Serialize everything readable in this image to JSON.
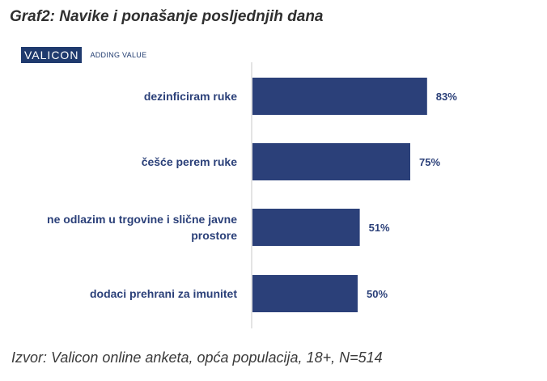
{
  "header": {
    "title": "Graf2: Navike i ponašanje posljednjih dana"
  },
  "logo": {
    "brand": "VALICON",
    "tagline": "ADDING VALUE",
    "brand_color": "#1f3a6e"
  },
  "chart_data": {
    "type": "bar",
    "orientation": "horizontal",
    "categories": [
      [
        "dezinficiram ruke"
      ],
      [
        "češće perem ruke"
      ],
      [
        "ne odlazim u trgovine i slične javne",
        "prostore"
      ],
      [
        "dodaci prehrani za imunitet"
      ]
    ],
    "values": [
      83,
      75,
      51,
      50
    ],
    "value_labels": [
      "83%",
      "75%",
      "51%",
      "50%"
    ],
    "bar_color": "#2b4079",
    "label_color": "#2b4079",
    "xlim": [
      0,
      100
    ],
    "grid": false,
    "legend": "none"
  },
  "footer": {
    "source": "Izvor: Valicon online anketa, opća populacija, 18+, N=514"
  }
}
